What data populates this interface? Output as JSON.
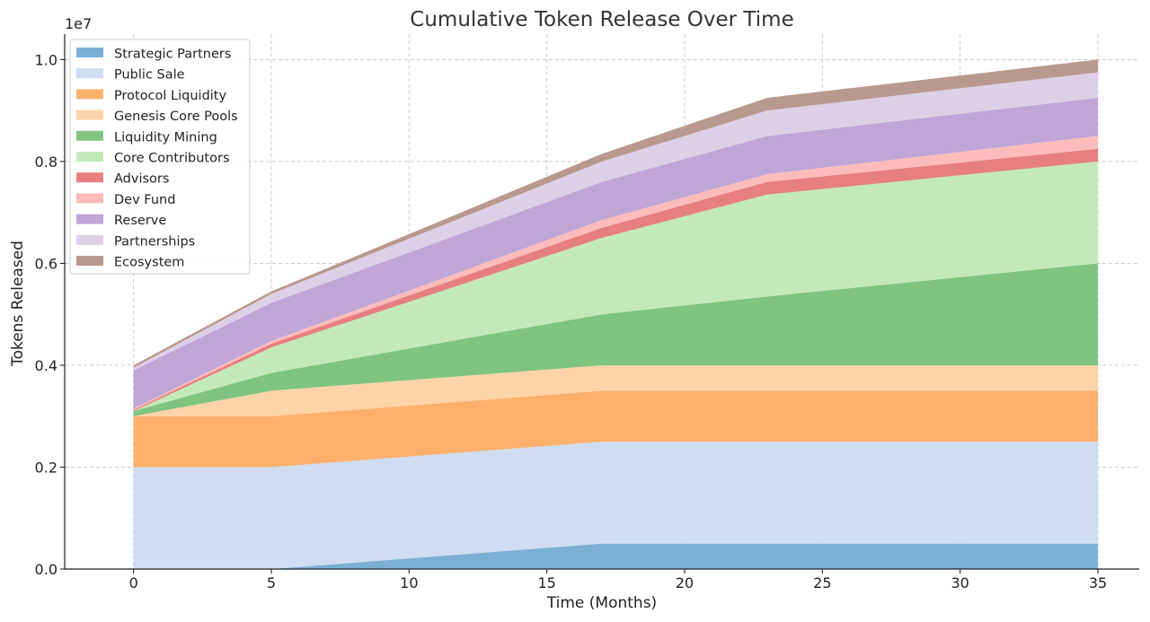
{
  "chart_data": {
    "type": "area",
    "stacked": true,
    "title": "Cumulative Token Release Over Time",
    "xlabel": "Time (Months)",
    "ylabel": "Tokens Released",
    "y_offset_label": "1e7",
    "xlim": [
      -2.5,
      36.5
    ],
    "ylim": [
      0,
      10500000
    ],
    "x_ticks": [
      "0",
      "5",
      "10",
      "15",
      "20",
      "25",
      "30",
      "35"
    ],
    "y_ticks": [
      "0.0",
      "0.2",
      "0.4",
      "0.6",
      "0.8",
      "1.0"
    ],
    "grid": true,
    "legend_position": "top-left",
    "x": [
      0,
      5,
      17,
      23,
      35
    ],
    "series": [
      {
        "name": "Strategic Partners",
        "color": "#7bafd4",
        "values": [
          0,
          0,
          500000,
          500000,
          500000
        ]
      },
      {
        "name": " Public Sale",
        "color": "#cfdcf1",
        "values": [
          2000000,
          2000000,
          2000000,
          2000000,
          2000000
        ]
      },
      {
        "name": "Protocol Liquidity",
        "color": "#fdb06c",
        "values": [
          1000000,
          1000000,
          1000000,
          1000000,
          1000000
        ]
      },
      {
        "name": "Genesis Core Pools",
        "color": "#fdd3a8",
        "values": [
          0,
          500000,
          500000,
          500000,
          500000
        ]
      },
      {
        "name": "Liquidity Mining",
        "color": "#7fc47f",
        "values": [
          100000,
          350000,
          1000000,
          1350000,
          2000000
        ]
      },
      {
        "name": "Core Contributors",
        "color": "#c2eab8",
        "values": [
          0,
          500000,
          1500000,
          2000000,
          2000000
        ]
      },
      {
        "name": "Advisors",
        "color": "#e77f80",
        "values": [
          25000,
          75000,
          200000,
          250000,
          250000
        ]
      },
      {
        "name": "Dev Fund",
        "color": "#fcbcbb",
        "values": [
          25000,
          50000,
          150000,
          150000,
          250000
        ]
      },
      {
        "name": "Reserve",
        "color": "#bfa6d6",
        "values": [
          750000,
          750000,
          750000,
          750000,
          750000
        ]
      },
      {
        "name": "Partnerships",
        "color": "#ddd0e6",
        "values": [
          50000,
          175000,
          400000,
          500000,
          500000
        ]
      },
      {
        "name": "Ecosystem",
        "color": "#b8998f",
        "values": [
          50000,
          50000,
          150000,
          250000,
          250000
        ]
      }
    ]
  }
}
